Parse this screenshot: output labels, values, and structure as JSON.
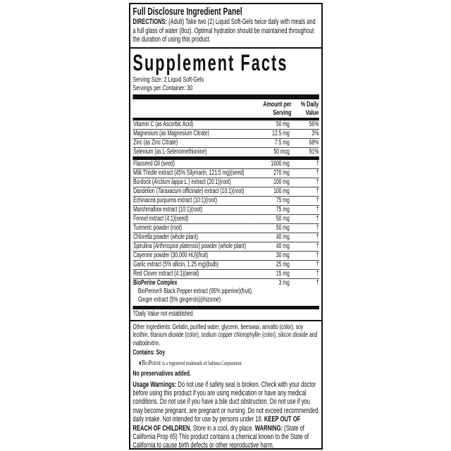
{
  "panel_title": "Full Disclosure Ingredient Panel",
  "directions": {
    "label": "DIRECTIONS:",
    "text": " (Adult) Take two (2) Liquid Soft-Gels twice daily with meals and a full glass of water (8oz). Optimal hydration should be maintained throughout the duration of using this product."
  },
  "facts": {
    "title": "Supplement Facts",
    "serving_size": "Serving Size:  2 Liquid Soft-Gels",
    "servings_per_container": "Servings per Container:  30",
    "header_amount": [
      "Amount per",
      "Serving"
    ],
    "header_dv": [
      "% Daily",
      "Value"
    ],
    "nutrients": [
      {
        "pre": "Vitamin C (as Ascorbic Acid)",
        "amount": "50 mg",
        "dv": "56%"
      },
      {
        "pre": "Magnesium (as Magnesium Citrate)",
        "amount": "12.5 mg",
        "dv": "3%"
      },
      {
        "pre": "Zinc (as Zinc Citrate)",
        "amount": "7.5 mg",
        "dv": "68%"
      },
      {
        "pre": "Selenium (as L-Selenomethionine)",
        "amount": "50 mcg",
        "dv": "91%"
      }
    ],
    "ingredients": [
      {
        "pre": "Flaxseed Oil (seed)",
        "italic": "",
        "post": "",
        "amount": "1600 mg",
        "dv": "†"
      },
      {
        "pre": "Milk Thistle extract (45% Silymarin, 121.5 mg)(seed)",
        "italic": "",
        "post": "",
        "amount": "270 mg",
        "dv": "†"
      },
      {
        "pre": "Burdock (",
        "italic": "Arctium lappa L.",
        "post": ") extract (20:1)(root)",
        "amount": "100 mg",
        "dv": "†"
      },
      {
        "pre": "Dandelion (",
        "italic": "Taraxacum officinale",
        "post": ") extract (10:1)(root)",
        "amount": "100 mg",
        "dv": "†"
      },
      {
        "pre": "Echinacea purpurea extract (10:1)(root)",
        "italic": "",
        "post": "",
        "amount": "75 mg",
        "dv": "†"
      },
      {
        "pre": "Marshmallow extract (10:1)(root)",
        "italic": "",
        "post": "",
        "amount": "75 mg",
        "dv": "†"
      },
      {
        "pre": "Fennel extract (4:1)(seed)",
        "italic": "",
        "post": "",
        "amount": "50 mg",
        "dv": "†"
      },
      {
        "pre": "Turmeric powder (root)",
        "italic": "",
        "post": "",
        "amount": "50 mg",
        "dv": "†"
      },
      {
        "pre": "Chlorella powder (whole plant)",
        "italic": "",
        "post": "",
        "amount": "40 mg",
        "dv": "†"
      },
      {
        "pre": "Spirulina (",
        "italic": "Arthrospira platensis",
        "post": ") powder (whole plant)",
        "amount": "40 mg",
        "dv": "†"
      },
      {
        "pre": "Cayenne powder (30,000 HU)(fruit)",
        "italic": "",
        "post": "",
        "amount": "30 mg",
        "dv": "†"
      },
      {
        "pre": "Garlic extract (5% allicin, 1.25 mg)(bulb)",
        "italic": "",
        "post": "",
        "amount": "25 mg",
        "dv": "†"
      },
      {
        "pre": "Red Clover extract (4:1)(aerial)",
        "italic": "",
        "post": "",
        "amount": "15 mg",
        "dv": "†"
      }
    ],
    "complex": {
      "name": "BioPerine Complex",
      "amount": "3 mg",
      "dv": "†",
      "sub1": "BioPerine® Black Pepper extract (95% piperine)(fruit),",
      "sub2": "Ginger extract (5% gingerols)(rhizome)"
    },
    "footnote": "†Daily Value not established"
  },
  "other_ingredients": "Other Ingredients:  Gelatin, purified water, glycerin, beeswax, annatto (color), soy lecithin, titanium dioxide (color), sodium copper chlorophyllin (color), silicon dioxide and maltodextrin.",
  "contains": "Contains: Soy",
  "trademark": {
    "logo": "BioPerine",
    "text": " is a registered trademark of Sabinsa Corporation."
  },
  "no_preservatives": "No preservatives added.",
  "warnings": {
    "usage_label": "Usage Warnings:",
    "usage_text": " Do not use if safety seal is broken. Check with your doctor before using this product if you are using medication or have any medical conditions. Do not use if you have a bile duct obstruction. Do not use if you may become pregnant, are pregnant or nursing. Do not exceed recommended daily intake. Not intended for use by persons under 18.",
    "keep_label": "KEEP OUT OF REACH OF CHILDREN.",
    "keep_text": " Store in a cool, dry place.",
    "prop65_label": "WARNING:",
    "prop65_text": " (State of California Prop 65) This product contains a chemical known to the State of California to cause birth defects or other reproductive harm."
  }
}
